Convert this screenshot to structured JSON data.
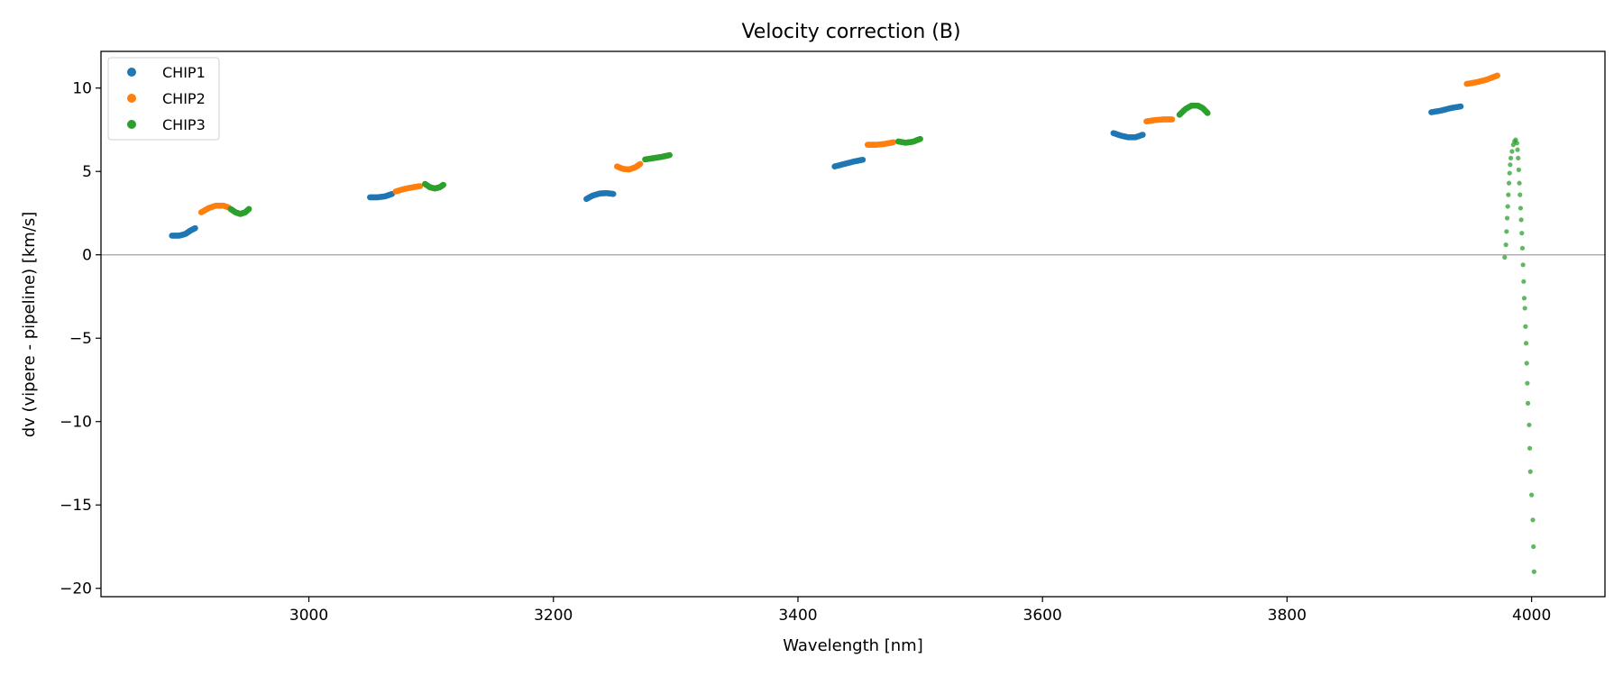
{
  "chart_data": {
    "type": "scatter",
    "title": "Velocity correction (B)",
    "xlabel": "Wavelength [nm]",
    "ylabel": "dv (vipere - pipeline) [km/s]",
    "xlim": [
      2830,
      4060
    ],
    "ylim": [
      -20.5,
      12.2
    ],
    "xticks": [
      3000,
      3200,
      3400,
      3600,
      3800,
      4000
    ],
    "yticks": [
      10,
      5,
      0,
      -5,
      -10,
      -15,
      -20
    ],
    "reference_line_y": 0,
    "legend": {
      "position": "top-left",
      "entries": [
        "CHIP1",
        "CHIP2",
        "CHIP3"
      ]
    },
    "series": [
      {
        "name": "CHIP1",
        "color": "#1f77b4",
        "segments": [
          [
            [
              2888,
              1.15
            ],
            [
              2894,
              1.15
            ],
            [
              2899,
              1.25
            ],
            [
              2903,
              1.45
            ],
            [
              2907,
              1.6
            ]
          ],
          [
            [
              3050,
              3.45
            ],
            [
              3056,
              3.45
            ],
            [
              3062,
              3.5
            ],
            [
              3068,
              3.65
            ]
          ],
          [
            [
              3227,
              3.35
            ],
            [
              3232,
              3.55
            ],
            [
              3238,
              3.68
            ],
            [
              3244,
              3.7
            ],
            [
              3249,
              3.65
            ]
          ],
          [
            [
              3430,
              5.3
            ],
            [
              3438,
              5.45
            ],
            [
              3446,
              5.6
            ],
            [
              3453,
              5.7
            ]
          ],
          [
            [
              3658,
              7.3
            ],
            [
              3664,
              7.15
            ],
            [
              3670,
              7.05
            ],
            [
              3676,
              7.05
            ],
            [
              3682,
              7.2
            ]
          ],
          [
            [
              3918,
              8.55
            ],
            [
              3926,
              8.65
            ],
            [
              3934,
              8.8
            ],
            [
              3942,
              8.9
            ]
          ]
        ]
      },
      {
        "name": "CHIP2",
        "color": "#ff7f0e",
        "segments": [
          [
            [
              2912,
              2.55
            ],
            [
              2918,
              2.8
            ],
            [
              2924,
              2.95
            ],
            [
              2930,
              2.95
            ],
            [
              2934,
              2.85
            ]
          ],
          [
            [
              3071,
              3.8
            ],
            [
              3078,
              3.95
            ],
            [
              3085,
              4.05
            ],
            [
              3091,
              4.12
            ]
          ],
          [
            [
              3252,
              5.3
            ],
            [
              3257,
              5.15
            ],
            [
              3262,
              5.12
            ],
            [
              3267,
              5.25
            ],
            [
              3271,
              5.45
            ]
          ],
          [
            [
              3457,
              6.6
            ],
            [
              3464,
              6.6
            ],
            [
              3471,
              6.65
            ],
            [
              3478,
              6.75
            ]
          ],
          [
            [
              3685,
              8.0
            ],
            [
              3692,
              8.08
            ],
            [
              3699,
              8.12
            ],
            [
              3706,
              8.12
            ]
          ],
          [
            [
              3947,
              10.25
            ],
            [
              3955,
              10.35
            ],
            [
              3963,
              10.5
            ],
            [
              3972,
              10.75
            ]
          ]
        ]
      },
      {
        "name": "CHIP3",
        "color": "#2ca02c",
        "segments": [
          [
            [
              2936,
              2.75
            ],
            [
              2940,
              2.55
            ],
            [
              2944,
              2.45
            ],
            [
              2948,
              2.55
            ],
            [
              2951,
              2.75
            ]
          ],
          [
            [
              3095,
              4.25
            ],
            [
              3099,
              4.05
            ],
            [
              3103,
              3.98
            ],
            [
              3107,
              4.05
            ],
            [
              3110,
              4.2
            ]
          ],
          [
            [
              3275,
              5.72
            ],
            [
              3282,
              5.8
            ],
            [
              3289,
              5.88
            ],
            [
              3295,
              5.98
            ]
          ],
          [
            [
              3482,
              6.8
            ],
            [
              3488,
              6.72
            ],
            [
              3494,
              6.78
            ],
            [
              3500,
              6.95
            ]
          ],
          [
            [
              3712,
              8.4
            ],
            [
              3717,
              8.75
            ],
            [
              3722,
              8.95
            ],
            [
              3727,
              8.95
            ],
            [
              3731,
              8.8
            ],
            [
              3735,
              8.5
            ]
          ]
        ]
      },
      {
        "name": "CHIP3",
        "color": "#2ca02c",
        "sparse": true,
        "points": [
          [
            3978,
            -0.15
          ],
          [
            3979,
            0.6
          ],
          [
            3979.5,
            1.4
          ],
          [
            3980,
            2.2
          ],
          [
            3980.5,
            2.9
          ],
          [
            3981,
            3.6
          ],
          [
            3981.5,
            4.3
          ],
          [
            3982,
            4.9
          ],
          [
            3982.5,
            5.4
          ],
          [
            3983,
            5.8
          ],
          [
            3984,
            6.2
          ],
          [
            3985,
            6.6
          ],
          [
            3986,
            6.8
          ],
          [
            3987,
            6.9
          ],
          [
            3988,
            6.7
          ],
          [
            3988.5,
            6.3
          ],
          [
            3989,
            5.8
          ],
          [
            3989.5,
            5.1
          ],
          [
            3990,
            4.3
          ],
          [
            3990.5,
            3.6
          ],
          [
            3991,
            2.8
          ],
          [
            3991.5,
            2.1
          ],
          [
            3992,
            1.3
          ],
          [
            3992.5,
            0.4
          ],
          [
            3993,
            -0.6
          ],
          [
            3993.5,
            -1.6
          ],
          [
            3994,
            -2.6
          ],
          [
            3994.5,
            -3.2
          ],
          [
            3995,
            -4.3
          ],
          [
            3995.5,
            -5.3
          ],
          [
            3996,
            -6.5
          ],
          [
            3996.5,
            -7.7
          ],
          [
            3997,
            -8.9
          ],
          [
            3998,
            -10.2
          ],
          [
            3998.5,
            -11.6
          ],
          [
            3999,
            -13.0
          ],
          [
            4000,
            -14.4
          ],
          [
            4001,
            -15.9
          ],
          [
            4001.5,
            -17.5
          ],
          [
            4002,
            -19.0
          ]
        ]
      }
    ]
  }
}
